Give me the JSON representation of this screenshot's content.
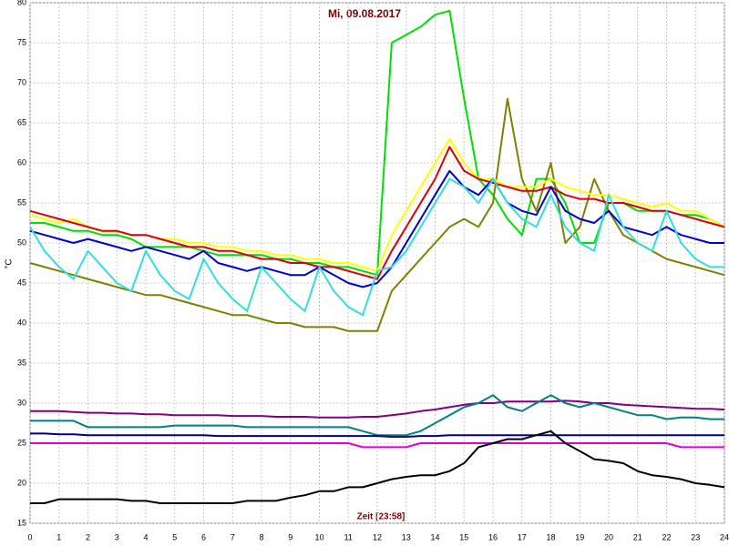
{
  "chart_data": {
    "type": "line",
    "title": "Mi, 09.08.2017",
    "y_label": "°C",
    "x_label": "Zeit [23:58]",
    "xlim": [
      0,
      24
    ],
    "ylim": [
      15,
      80
    ],
    "xticks": [
      0,
      1,
      2,
      3,
      4,
      5,
      6,
      7,
      8,
      9,
      10,
      11,
      12,
      13,
      14,
      15,
      16,
      17,
      18,
      19,
      20,
      21,
      22,
      23,
      24
    ],
    "yticks": [
      15,
      20,
      25,
      30,
      35,
      40,
      45,
      50,
      55,
      60,
      65,
      70,
      75,
      80
    ],
    "grid": true,
    "x": [
      0,
      0.5,
      1,
      1.5,
      2,
      2.5,
      3,
      3.5,
      4,
      4.5,
      5,
      5.5,
      6,
      6.5,
      7,
      7.5,
      8,
      8.5,
      9,
      9.5,
      10,
      10.5,
      11,
      11.5,
      12,
      12.5,
      13,
      13.5,
      14,
      14.5,
      15,
      15.5,
      16,
      16.5,
      17,
      17.5,
      18,
      18.5,
      19,
      19.5,
      20,
      20.5,
      21,
      21.5,
      22,
      22.5,
      23,
      23.5,
      24
    ],
    "series": [
      {
        "color": "#00e000",
        "values": [
          52.5,
          52.5,
          52,
          51.5,
          51.5,
          51,
          51,
          50.5,
          49.5,
          49.5,
          49.5,
          49.5,
          49,
          48.5,
          48.5,
          48.5,
          48.5,
          48,
          48,
          47.5,
          47.5,
          47,
          47,
          46.5,
          46,
          75,
          76,
          77,
          78.5,
          79,
          68,
          58,
          56,
          53,
          51,
          58,
          58,
          55,
          50,
          50,
          55,
          55,
          54,
          54,
          54,
          53.5,
          53.5,
          53,
          52
        ]
      },
      {
        "color": "#808000",
        "values": [
          47.5,
          47,
          46.5,
          46,
          45.5,
          45,
          44.5,
          44,
          43.5,
          43.5,
          43,
          42.5,
          42,
          41.5,
          41,
          41,
          40.5,
          40,
          40,
          39.5,
          39.5,
          39.5,
          39,
          39,
          39,
          44,
          46,
          48,
          50,
          52,
          53,
          52,
          55,
          68,
          58,
          54,
          60,
          50,
          52,
          58,
          54,
          51,
          50,
          49,
          48,
          47.5,
          47,
          46.5,
          46
        ]
      },
      {
        "color": "#ffff00",
        "values": [
          53.5,
          53,
          52.5,
          53,
          52,
          51.5,
          51.5,
          51,
          51,
          50.5,
          50.5,
          50,
          50,
          49.5,
          49.5,
          49,
          49,
          48.5,
          48.5,
          48,
          48,
          47.5,
          47.5,
          47,
          46.5,
          51,
          54,
          57,
          60,
          63,
          60,
          58,
          58,
          57,
          57,
          57,
          58,
          57,
          56.5,
          56,
          56,
          55.5,
          55,
          54.5,
          55,
          54,
          54,
          53,
          52
        ]
      },
      {
        "color": "#dd0000",
        "values": [
          54,
          53.5,
          53,
          52.5,
          52,
          51.5,
          51.5,
          51,
          51,
          50.5,
          50,
          49.5,
          49.5,
          49,
          49,
          48.5,
          48,
          48,
          47.5,
          47.5,
          47,
          47,
          46.5,
          46,
          45.5,
          49,
          52,
          55,
          58,
          62,
          59,
          58,
          57.5,
          57,
          56.5,
          56.5,
          57,
          56,
          55.5,
          55.5,
          55,
          55,
          54.5,
          54,
          54,
          53.5,
          53,
          52.5,
          52
        ]
      },
      {
        "color": "#0000cc",
        "values": [
          51.5,
          51,
          50.5,
          50,
          50.5,
          50,
          49.5,
          49,
          49.5,
          49,
          48.5,
          48,
          49,
          47.5,
          47,
          46.5,
          47,
          46.5,
          46,
          46,
          47,
          46,
          45,
          44.5,
          45,
          47,
          50,
          53,
          56,
          59,
          57,
          56,
          58,
          55,
          54,
          53.5,
          57,
          54,
          53,
          52.5,
          54,
          52,
          51.5,
          51,
          52,
          51,
          50.5,
          50,
          50
        ]
      },
      {
        "color": "#33dddd",
        "values": [
          52,
          49,
          47,
          45.5,
          49,
          47,
          45,
          44,
          49,
          46,
          44,
          43,
          48,
          45,
          43,
          41.5,
          47,
          45,
          43,
          41.5,
          47,
          44,
          42,
          41,
          46.5,
          47,
          49,
          52,
          55,
          58,
          57,
          55,
          58,
          55,
          53,
          52,
          56,
          52,
          50,
          49,
          56,
          52,
          50,
          49,
          54,
          50,
          48,
          47,
          47
        ]
      },
      {
        "color": "#800080",
        "values": [
          29,
          29,
          29,
          28.9,
          28.8,
          28.8,
          28.7,
          28.7,
          28.6,
          28.6,
          28.5,
          28.5,
          28.5,
          28.5,
          28.4,
          28.4,
          28.4,
          28.3,
          28.3,
          28.3,
          28.2,
          28.2,
          28.2,
          28.3,
          28.3,
          28.5,
          28.7,
          29,
          29.2,
          29.5,
          29.8,
          30,
          30,
          30.2,
          30.2,
          30.2,
          30.2,
          30.3,
          30.2,
          30,
          30,
          29.8,
          29.7,
          29.6,
          29.5,
          29.4,
          29.3,
          29.3,
          29.2
        ]
      },
      {
        "color": "#008080",
        "values": [
          27.8,
          27.8,
          27.8,
          27.8,
          27,
          27,
          27,
          27,
          27,
          27,
          27.2,
          27.2,
          27.2,
          27.2,
          27.2,
          27,
          27,
          27,
          27,
          27,
          27,
          27,
          27,
          26.5,
          26,
          26,
          26,
          26.5,
          27.5,
          28.5,
          29.5,
          30,
          31,
          29.5,
          29,
          30,
          31,
          30,
          29.5,
          30,
          29.5,
          29,
          28.5,
          28.5,
          28,
          28.2,
          28.2,
          28,
          28
        ]
      },
      {
        "color": "#000080",
        "values": [
          26.2,
          26.2,
          26.1,
          26.1,
          26,
          26,
          26,
          26,
          26,
          26,
          26,
          26,
          26,
          25.9,
          25.9,
          25.9,
          25.9,
          25.9,
          25.9,
          25.9,
          25.9,
          25.9,
          25.9,
          25.9,
          25.9,
          25.8,
          25.8,
          25.9,
          25.9,
          26,
          26,
          26,
          26,
          26,
          26,
          26,
          26,
          26,
          26,
          26,
          26,
          26,
          26,
          26,
          26,
          26,
          26,
          26,
          26
        ]
      },
      {
        "color": "#dd00dd",
        "values": [
          25,
          25,
          25,
          25,
          25,
          25,
          25,
          25,
          25,
          25,
          25,
          25,
          25,
          25,
          25,
          25,
          25,
          25,
          25,
          25,
          25,
          25,
          25,
          24.5,
          24.5,
          24.5,
          24.5,
          25,
          25,
          25,
          25,
          25,
          25,
          25,
          25,
          25,
          25,
          25,
          25,
          25,
          25,
          25,
          25,
          25,
          25,
          24.5,
          24.5,
          24.5,
          24.5
        ]
      },
      {
        "color": "#000000",
        "values": [
          17.5,
          17.5,
          18,
          18,
          18,
          18,
          18,
          17.8,
          17.8,
          17.5,
          17.5,
          17.5,
          17.5,
          17.5,
          17.5,
          17.8,
          17.8,
          17.8,
          18.2,
          18.5,
          19,
          19,
          19.5,
          19.5,
          20,
          20.5,
          20.8,
          21,
          21,
          21.5,
          22.5,
          24.5,
          25,
          25.5,
          25.5,
          26,
          26.5,
          25,
          24,
          23,
          22.8,
          22.5,
          21.5,
          21,
          20.8,
          20.5,
          20,
          19.8,
          19.5
        ]
      }
    ]
  }
}
